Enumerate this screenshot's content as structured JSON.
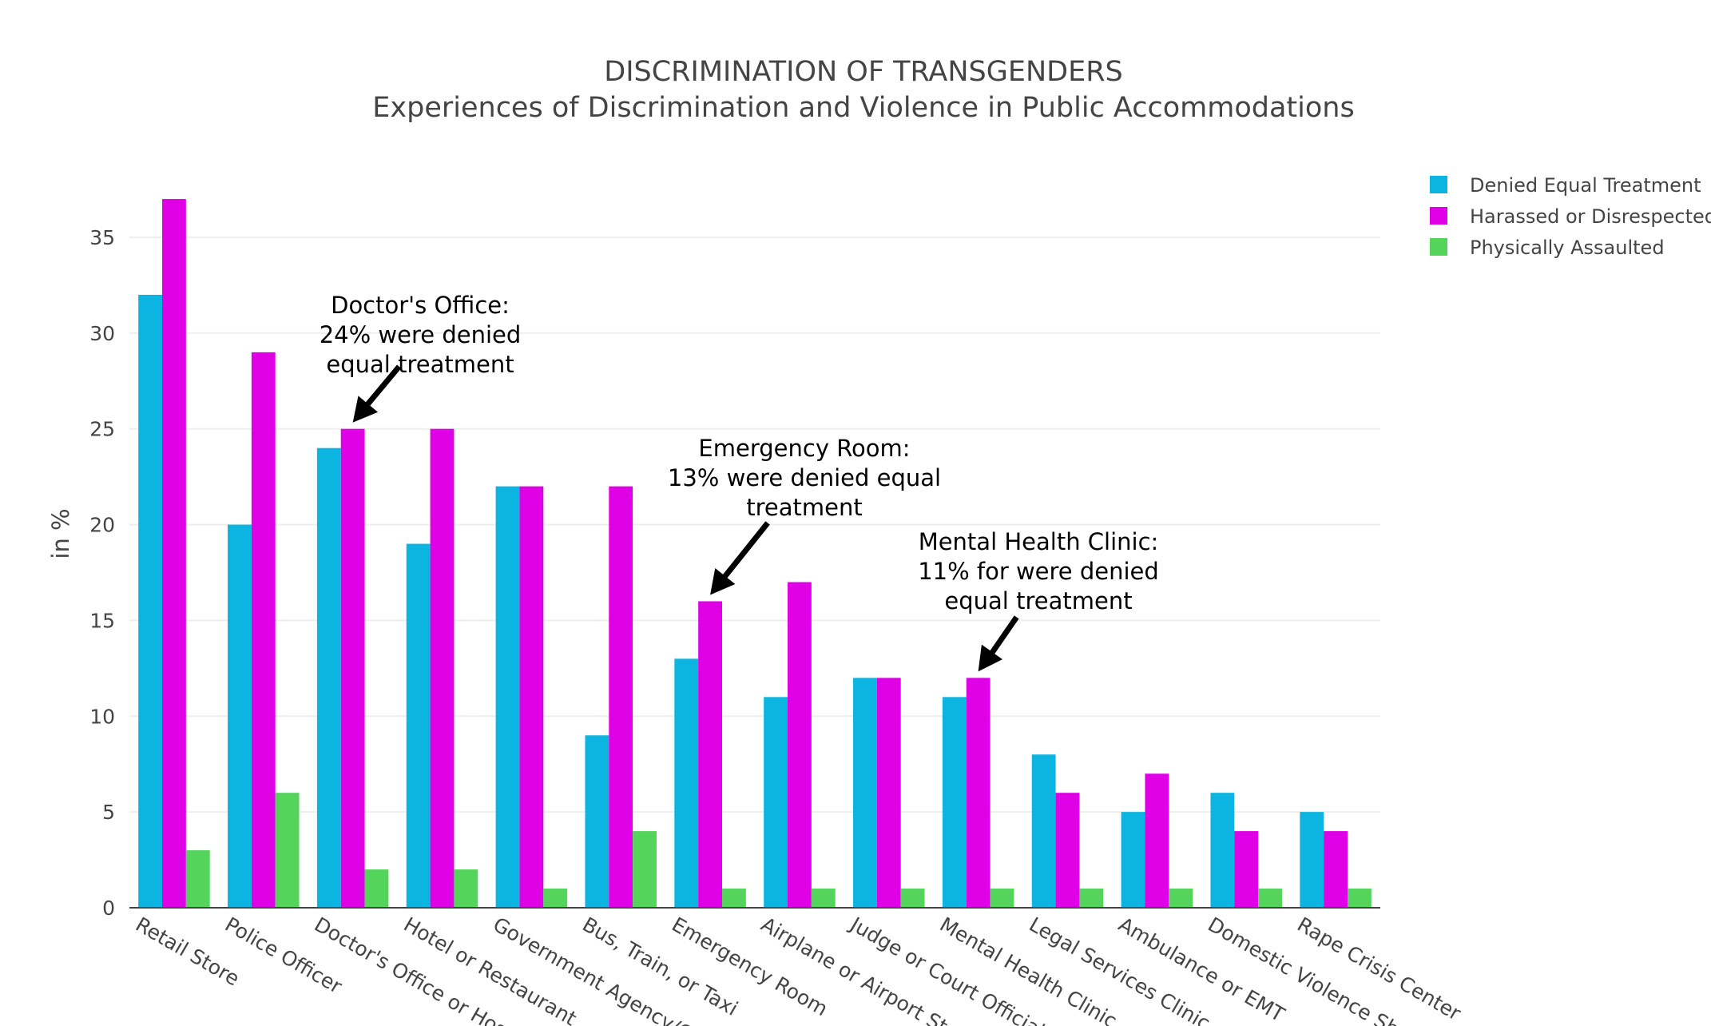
{
  "chart_data": {
    "type": "bar",
    "title": "DISCRIMINATION OF TRANSGENDERS",
    "subtitle": "Experiences of Discrimination and Violence in Public Accommodations",
    "xlabel": "",
    "ylabel": "in %",
    "ylim": [
      0,
      37
    ],
    "yticks": [
      0,
      5,
      10,
      15,
      20,
      25,
      30,
      35
    ],
    "grid": true,
    "legend_position": "top-right",
    "categories": [
      "Retail Store",
      "Police Officer",
      "Doctor's Office or Hospital",
      "Hotel or Restaurant",
      "Government Agency/Official",
      "Bus, Train, or Taxi",
      "Emergency Room",
      "Airplane or Airport Staff/TSA",
      "Judge or Court Official",
      "Mental Health Clinic",
      "Legal Services Clinic",
      "Ambulance or EMT",
      "Domestic Violence Shelter",
      "Rape Crisis Center"
    ],
    "series": [
      {
        "name": "Denied Equal Treatment",
        "color": "#0bb4e1",
        "values": [
          32,
          20,
          24,
          19,
          22,
          9,
          13,
          11,
          12,
          11,
          8,
          5,
          6,
          5
        ]
      },
      {
        "name": "Harassed or Disrespected",
        "color": "#e000e6",
        "values": [
          37,
          29,
          25,
          25,
          22,
          22,
          16,
          17,
          12,
          12,
          6,
          7,
          4,
          4
        ]
      },
      {
        "name": "Physically Assaulted",
        "color": "#55d45c",
        "values": [
          3,
          6,
          2,
          2,
          1,
          4,
          1,
          1,
          1,
          1,
          1,
          1,
          1,
          1
        ]
      }
    ],
    "annotations": [
      {
        "lines": [
          "Doctor's Office:",
          "24% were denied",
          "equal treatment"
        ],
        "category_index": 2,
        "series_index": 1
      },
      {
        "lines": [
          "Emergency Room:",
          "13% were denied equal",
          "treatment"
        ],
        "category_index": 6,
        "series_index": 1
      },
      {
        "lines": [
          "Mental Health Clinic:",
          "11% for were denied",
          "equal treatment"
        ],
        "category_index": 9,
        "series_index": 1
      }
    ]
  }
}
